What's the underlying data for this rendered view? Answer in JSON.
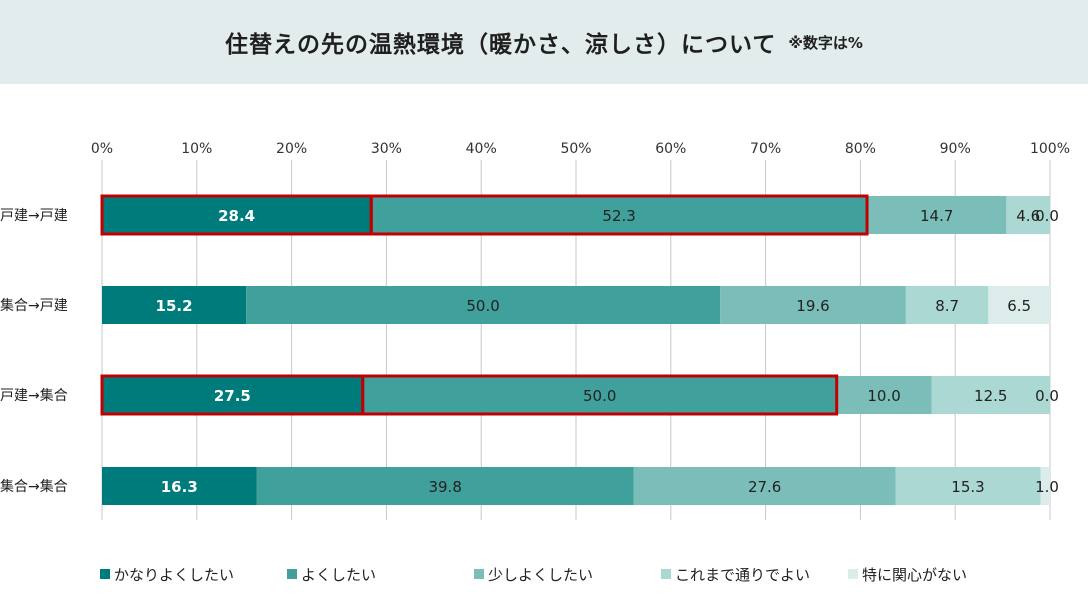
{
  "header": {
    "title": "住替えの先の温熱環境（暖かさ、涼しさ）について",
    "note": "※数字は%"
  },
  "chart_data": {
    "type": "bar",
    "orientation": "horizontal",
    "stacked": true,
    "percent": true,
    "xlim": [
      0,
      100
    ],
    "xticks": [
      "0%",
      "10%",
      "20%",
      "30%",
      "40%",
      "50%",
      "60%",
      "70%",
      "80%",
      "90%",
      "100%"
    ],
    "grid": true,
    "legend_position": "bottom",
    "categories": [
      "戸建→戸建",
      "集合→戸建",
      "戸建→集合",
      "集合→集合"
    ],
    "series": [
      {
        "name": "かなりよくしたい",
        "color": "#007b7b",
        "values": [
          28.4,
          15.2,
          27.5,
          16.3
        ]
      },
      {
        "name": "よくしたい",
        "color": "#3fa09c",
        "values": [
          52.3,
          50.0,
          50.0,
          39.8
        ]
      },
      {
        "name": "少しよくしたい",
        "color": "#7bbeb9",
        "values": [
          14.7,
          19.6,
          10.0,
          27.6
        ]
      },
      {
        "name": "これまで通りでよい",
        "color": "#acd8d3",
        "values": [
          4.6,
          8.7,
          12.5,
          15.3
        ]
      },
      {
        "name": "特に関心がない",
        "color": "#dcecea",
        "values": [
          0.0,
          6.5,
          0.0,
          1.0
        ]
      }
    ],
    "value_labels": [
      [
        "28.4",
        "52.3",
        "14.7",
        "4.6",
        "0.0"
      ],
      [
        "15.2",
        "50.0",
        "19.6",
        "8.7",
        "6.5"
      ],
      [
        "27.5",
        "50.0",
        "10.0",
        "12.5",
        "0.0"
      ],
      [
        "16.3",
        "39.8",
        "27.6",
        "15.3",
        "1.0"
      ]
    ],
    "highlight_color": "#c00000",
    "highlights": [
      {
        "category_index": 0,
        "series_indices": [
          0,
          1
        ]
      },
      {
        "category_index": 2,
        "series_indices": [
          0,
          1
        ]
      }
    ]
  }
}
